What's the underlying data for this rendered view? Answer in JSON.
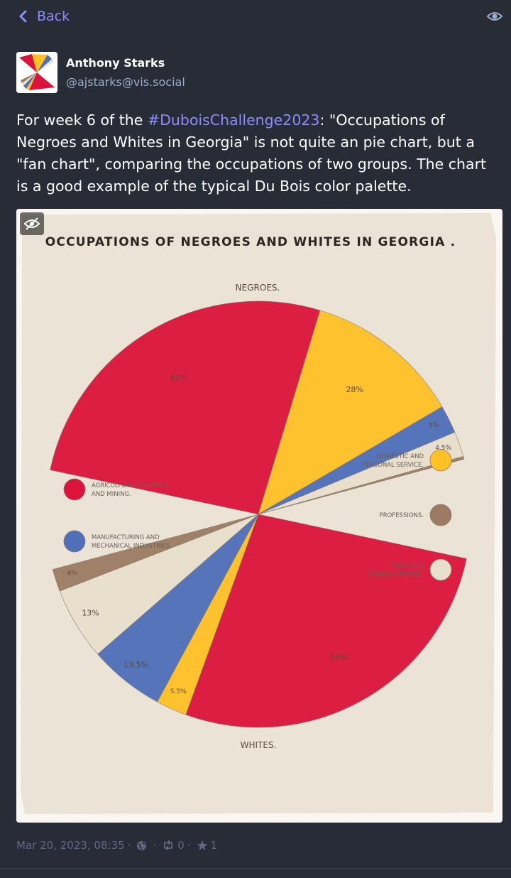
{
  "nav": {
    "back_label": "Back"
  },
  "account": {
    "display_name": "Anthony Starks",
    "handle": "@ajstarks@vis.social"
  },
  "status": {
    "text_before": "For week 6 of the ",
    "hashtag": "#DuboisChallenge2023",
    "text_after": ": \"Occupations of Negroes and Whites in Georgia\" is not quite an pie chart, but a \"fan chart\", comparing the occupations of two groups. The chart is a good example of the typical Du Bois color palette."
  },
  "meta": {
    "timestamp": "Mar 20, 2023, 08:35",
    "boosts": "0",
    "favourites": "1"
  },
  "colors": {
    "background": "#282c37",
    "accent": "#8c8dff",
    "muted": "#606984",
    "red": "#dc143c",
    "gold": "#ffc125",
    "blue": "#4f6fb8",
    "tan": "#e8dfcd",
    "brown": "#9b7b63"
  },
  "chart_data": {
    "type": "pie",
    "title": "OCCUPATIONS OF NEGROES AND WHITES IN GEORGIA .",
    "series": [
      {
        "name": "NEGROES.",
        "slices": [
          {
            "category": "AGRICULTURE, FISHERIES AND MINING.",
            "value": 62,
            "label": "62%"
          },
          {
            "category": "DOMESTIC AND PERSONAL SERVICE.",
            "value": 28,
            "label": "28%"
          },
          {
            "category": "MANUFACTURING AND MECHANICAL INDUSTRIES.",
            "value": 5,
            "label": "5%"
          },
          {
            "category": "TRADE AND TRANSPORTATION.",
            "value": 4.5,
            "label": "4.5%"
          },
          {
            "category": "PROFESSIONS.",
            "value": 0.5,
            "label": ""
          }
        ]
      },
      {
        "name": "WHITES.",
        "slices": [
          {
            "category": "AGRICULTURE, FISHERIES AND MINING.",
            "value": 64,
            "label": "64%"
          },
          {
            "category": "DOMESTIC AND PERSONAL SERVICE.",
            "value": 5.5,
            "label": "5.5%"
          },
          {
            "category": "MANUFACTURING AND MECHANICAL INDUSTRIES.",
            "value": 13.5,
            "label": "13.5%"
          },
          {
            "category": "TRADE AND TRANSPORTATION.",
            "value": 13,
            "label": "13%"
          },
          {
            "category": "PROFESSIONS.",
            "value": 4,
            "label": "4%"
          }
        ]
      }
    ],
    "legend": [
      {
        "label_line1": "AGRICULTURE, FISHERIES",
        "label_line2": "AND MINING.",
        "color": "#dc143c"
      },
      {
        "label_line1": "MANUFACTURING AND",
        "label_line2": "MECHANICAL INDUSTRIES.",
        "color": "#4f6fb8"
      },
      {
        "label_line1": "DOMESTIC AND",
        "label_line2": "PERSONAL SERVICE.",
        "color": "#ffc125"
      },
      {
        "label_line1": "PROFESSIONS.",
        "label_line2": "",
        "color": "#9b7b63"
      },
      {
        "label_line1": "TRADE AND",
        "label_line2": "TRANSPORTATION.",
        "color": "#e8dfcd"
      }
    ]
  }
}
